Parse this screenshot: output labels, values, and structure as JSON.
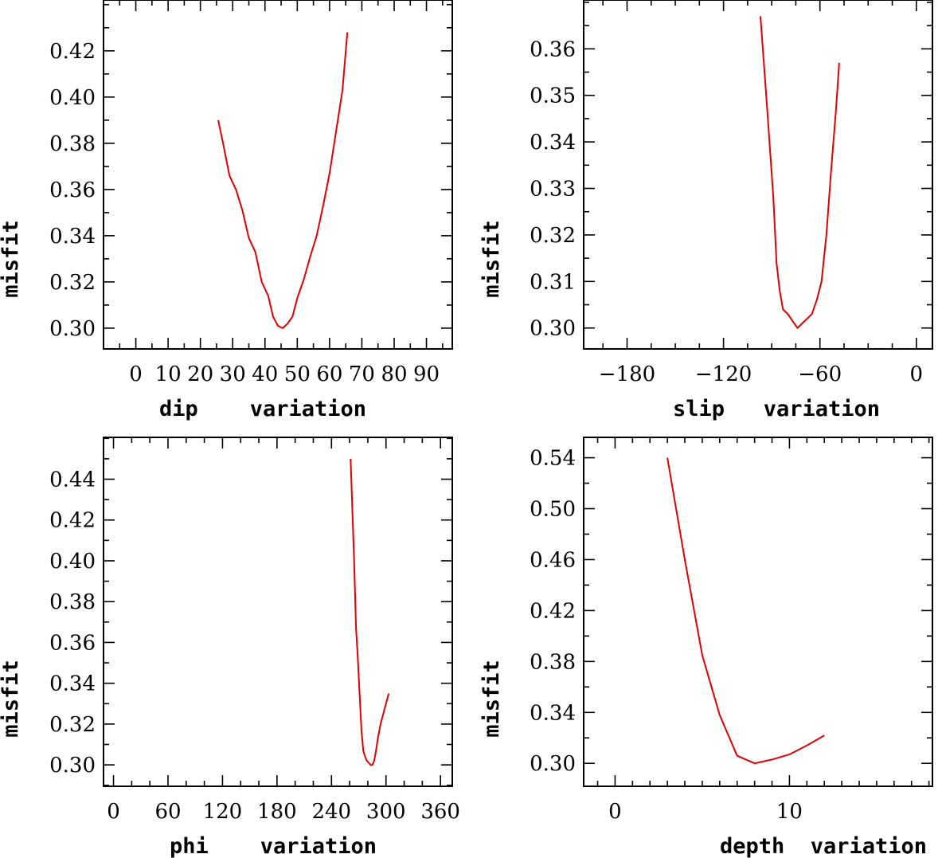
{
  "chart_data": [
    {
      "type": "line",
      "xlabel": "dip    variation",
      "ylabel": "misfit",
      "xlim": [
        -10,
        98
      ],
      "ylim": [
        0.291,
        0.442
      ],
      "xticks": [
        0,
        10,
        20,
        30,
        40,
        50,
        60,
        70,
        80,
        90
      ],
      "yticks": [
        0.3,
        0.32,
        0.34,
        0.36,
        0.38,
        0.4,
        0.42
      ],
      "x_minor_step": 5,
      "y_minor_step": 0.01,
      "color": "#e00000",
      "x": [
        25.5,
        27,
        29,
        31,
        33,
        35,
        37,
        39,
        41,
        42.5,
        44,
        45.5,
        47,
        48.5,
        50,
        52,
        54,
        56,
        58,
        60,
        62,
        64,
        65.5
      ],
      "y": [
        0.39,
        0.38,
        0.366,
        0.36,
        0.351,
        0.339,
        0.333,
        0.32,
        0.314,
        0.305,
        0.301,
        0.3,
        0.302,
        0.305,
        0.313,
        0.321,
        0.331,
        0.34,
        0.353,
        0.367,
        0.385,
        0.403,
        0.428
      ]
    },
    {
      "type": "line",
      "xlabel": "slip   variation",
      "ylabel": "misfit",
      "xlim": [
        -207,
        10
      ],
      "ylim": [
        0.2955,
        0.3705
      ],
      "xticks": [
        -180,
        -120,
        -60,
        0
      ],
      "yticks": [
        0.3,
        0.31,
        0.32,
        0.33,
        0.34,
        0.35,
        0.36
      ],
      "x_minor_step": 15,
      "y_minor_step": 0.005,
      "color": "#e00000",
      "x": [
        -97,
        -93,
        -89,
        -87,
        -85,
        -83,
        -80,
        -77,
        -74,
        -71,
        -68,
        -65,
        -62,
        -59,
        -56,
        -53,
        -50,
        -48
      ],
      "y": [
        0.367,
        0.348,
        0.328,
        0.314,
        0.308,
        0.304,
        0.303,
        0.3015,
        0.3,
        0.301,
        0.302,
        0.303,
        0.306,
        0.31,
        0.32,
        0.334,
        0.347,
        0.357
      ]
    },
    {
      "type": "line",
      "xlabel": "phi    variation",
      "ylabel": "misfit",
      "xlim": [
        -11,
        373
      ],
      "ylim": [
        0.2895,
        0.4605
      ],
      "xticks": [
        0,
        60,
        120,
        180,
        240,
        300,
        360
      ],
      "yticks": [
        0.3,
        0.32,
        0.34,
        0.36,
        0.38,
        0.4,
        0.42,
        0.44
      ],
      "x_minor_step": 20,
      "y_minor_step": 0.01,
      "color": "#e00000",
      "x": [
        261,
        263,
        265,
        267,
        269,
        271,
        273,
        275,
        277,
        279,
        281,
        283,
        285,
        287,
        289,
        291,
        294,
        297,
        300,
        303
      ],
      "y": [
        0.45,
        0.425,
        0.399,
        0.367,
        0.352,
        0.334,
        0.317,
        0.307,
        0.304,
        0.302,
        0.301,
        0.3,
        0.3,
        0.302,
        0.307,
        0.313,
        0.32,
        0.325,
        0.33,
        0.335
      ]
    },
    {
      "type": "line",
      "xlabel": "depth  variation",
      "ylabel": "misfit",
      "xlim": [
        -1.8,
        18.2
      ],
      "ylim": [
        0.282,
        0.556
      ],
      "xticks": [
        0,
        10
      ],
      "yticks": [
        0.3,
        0.34,
        0.38,
        0.42,
        0.46,
        0.5,
        0.54
      ],
      "x_minor_step": 1,
      "y_minor_step": 0.02,
      "color": "#e00000",
      "x": [
        3,
        4,
        5,
        6,
        7,
        8,
        9,
        10,
        11,
        12
      ],
      "y": [
        0.54,
        0.46,
        0.385,
        0.338,
        0.306,
        0.3,
        0.303,
        0.307,
        0.314,
        0.322
      ]
    }
  ]
}
